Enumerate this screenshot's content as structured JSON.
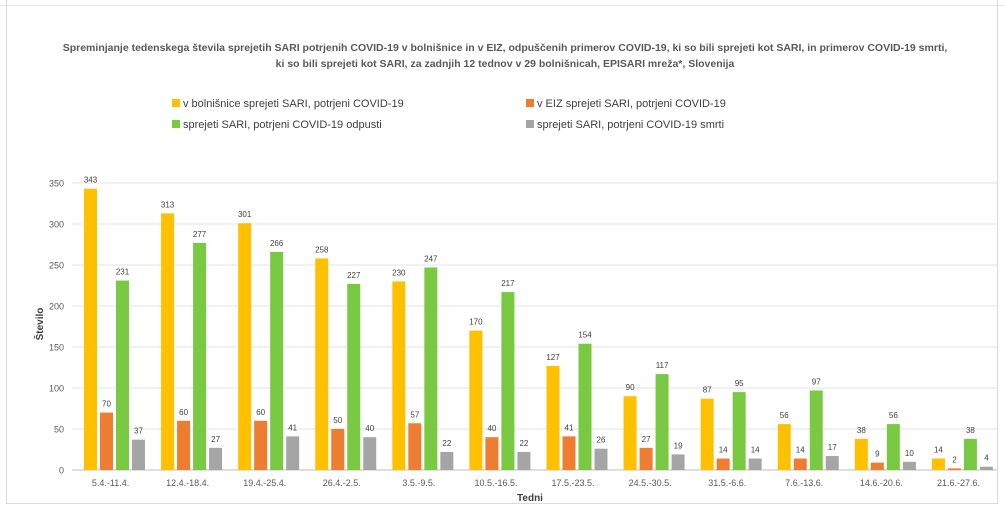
{
  "chart_data": {
    "type": "bar",
    "title": "Spreminjanje tedenskega števila sprejetih SARI potrjenih COVID-19 v bolnišnice in v EIZ, odpuščenih primerov COVID-19, ki so bili sprejeti kot SARI, in primerov COVID-19 smrti, ki so bili sprejeti kot SARI, za zadnjih 12 tednov  v 29 bolnišnicah, EPISARI mreža*, Slovenija",
    "xlabel": "Tedni",
    "ylabel": "Število",
    "ylim": [
      0,
      350
    ],
    "yticks": [
      0,
      50,
      100,
      150,
      200,
      250,
      300,
      350
    ],
    "grid": true,
    "legend_position": "top",
    "categories": [
      "5.4.-11.4.",
      "12.4.-18.4.",
      "19.4.-25.4.",
      "26.4.-2.5.",
      "3.5.-9.5.",
      "10.5.-16.5.",
      "17.5.-23.5.",
      "24.5.-30.5.",
      "31.5.-6.6.",
      "7.6.-13.6.",
      "14.6.-20.6.",
      "21.6.-27.6."
    ],
    "series": [
      {
        "name": "v bolnišnice sprejeti SARI, potrjeni COVID-19",
        "color": "#ffc000",
        "values": [
          343,
          313,
          301,
          258,
          230,
          170,
          127,
          90,
          87,
          56,
          38,
          14
        ]
      },
      {
        "name": "v EIZ sprejeti SARI, potrjeni COVID-19",
        "color": "#ed7d31",
        "values": [
          70,
          60,
          60,
          50,
          57,
          40,
          41,
          27,
          14,
          14,
          9,
          2
        ]
      },
      {
        "name": "sprejeti SARI, potrjeni COVID-19 odpusti",
        "color": "#7ac943",
        "values": [
          231,
          277,
          266,
          227,
          247,
          217,
          154,
          117,
          95,
          97,
          56,
          38
        ]
      },
      {
        "name": "sprejeti SARI, potrjeni COVID-19 smrti",
        "color": "#a5a5a5",
        "values": [
          37,
          27,
          41,
          40,
          22,
          22,
          26,
          19,
          14,
          17,
          10,
          4
        ]
      }
    ]
  }
}
